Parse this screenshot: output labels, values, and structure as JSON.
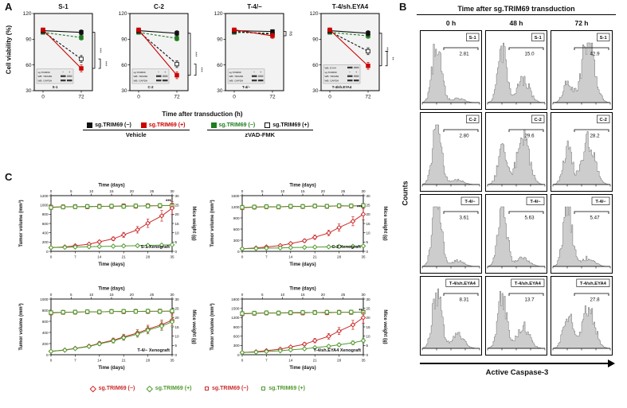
{
  "panelA": {
    "label": "A",
    "ylabel": "Cell viability (%)",
    "xlabel": "Time after transduction (h)",
    "legend": {
      "groups": [
        {
          "label": "Vehicle",
          "items": [
            {
              "label": "sg.TRIM69 (−)",
              "swatch": "#111111",
              "border": "#111111",
              "text": "#111111"
            },
            {
              "label": "sg.TRIM69 (+)",
              "swatch": "#cc0000",
              "border": "#cc0000",
              "text": "#cc0000"
            }
          ]
        },
        {
          "label": "zVAD-FMK",
          "items": [
            {
              "label": "sg.TRIM69 (−)",
              "swatch": "#1e7d1e",
              "border": "#1e7d1e",
              "text": "#1e7d1e"
            },
            {
              "label": "sg.TRIM69 (+)",
              "swatch": "#ffffff",
              "border": "#111111",
              "text": "#111111"
            }
          ]
        }
      ]
    }
  },
  "panelB": {
    "label": "B"
  },
  "panelC": {
    "label": "C",
    "top_xlabel": "Time (days)",
    "bottom_xlabel": "Time (days)",
    "left_ylabel": "Tumor volume (mm³)",
    "right_ylabel": "Mice weight (g)",
    "xticks_top": [
      0,
      5,
      10,
      15,
      20,
      25,
      30
    ],
    "xticks_bottom": [
      0,
      7,
      14,
      21,
      28,
      35
    ],
    "yticks_right": [
      0,
      5,
      10,
      15,
      20,
      25,
      30
    ],
    "volume_days": [
      0,
      4,
      7,
      11,
      14,
      18,
      21,
      25,
      28,
      32,
      35
    ],
    "weight_days": [
      0,
      3,
      6,
      9,
      12,
      15,
      18,
      21,
      24,
      27,
      30
    ],
    "legend": [
      {
        "label": "sg.TRIM69 (−)",
        "marker": "diamond",
        "color": "#cc2a2a"
      },
      {
        "label": "sg.TRIM69 (+)",
        "marker": "diamond",
        "color": "#4f9a2e"
      },
      {
        "label": "sg.TRIM69 (−)",
        "marker": "square",
        "color": "#cc2a2a"
      },
      {
        "label": "sg.TRIM69 (+)",
        "marker": "square",
        "color": "#4f9a2e"
      }
    ]
  },
  "chart_data": [
    {
      "panel": "A",
      "type": "line",
      "title": "S-1",
      "ylim": [
        30,
        120
      ],
      "yticks": [
        30,
        60,
        90,
        120
      ],
      "xticks": [
        0,
        72
      ],
      "series": [
        {
          "name": "sg.TRIM69 (−) Vehicle",
          "color": "#111111",
          "fill": "#111111",
          "dash": false,
          "values": [
            100,
            98
          ],
          "err": [
            2,
            3
          ]
        },
        {
          "name": "sg.TRIM69 (+) Vehicle",
          "color": "#cc0000",
          "fill": "#cc0000",
          "dash": false,
          "values": [
            101,
            56
          ],
          "err": [
            2,
            4
          ]
        },
        {
          "name": "sg.TRIM69 (−) zVAD-FMK",
          "color": "#1e7d1e",
          "fill": "#1e7d1e",
          "dash": true,
          "values": [
            98,
            92
          ],
          "err": [
            2,
            3
          ]
        },
        {
          "name": "sg.TRIM69 (+) zVAD-FMK",
          "color": "#111111",
          "fill": "#ffffff",
          "dash": true,
          "values": [
            99,
            67
          ],
          "err": [
            2,
            4
          ]
        }
      ],
      "sig": [
        {
          "span": [
            0,
            1
          ],
          "label": "***"
        },
        {
          "span": [
            3,
            1
          ],
          "label": "***"
        }
      ],
      "blot": {
        "rows": [
          "sg.TRIM69",
          "WB: TRIM69",
          "WB: GAPDH"
        ],
        "lanes": [
          "−",
          "+"
        ],
        "label": "S-1"
      }
    },
    {
      "panel": "A",
      "type": "line",
      "title": "C-2",
      "ylim": [
        30,
        120
      ],
      "yticks": [
        30,
        60,
        90,
        120
      ],
      "xticks": [
        0,
        72
      ],
      "series": [
        {
          "name": "sg.TRIM69 (−) Vehicle",
          "color": "#111111",
          "fill": "#111111",
          "dash": false,
          "values": [
            100,
            97
          ],
          "err": [
            2,
            3
          ]
        },
        {
          "name": "sg.TRIM69 (+) Vehicle",
          "color": "#cc0000",
          "fill": "#cc0000",
          "dash": false,
          "values": [
            101,
            48
          ],
          "err": [
            2,
            4
          ]
        },
        {
          "name": "sg.TRIM69 (−) zVAD-FMK",
          "color": "#1e7d1e",
          "fill": "#1e7d1e",
          "dash": true,
          "values": [
            98,
            91
          ],
          "err": [
            2,
            3
          ]
        },
        {
          "name": "sg.TRIM69 (+) zVAD-FMK",
          "color": "#111111",
          "fill": "#ffffff",
          "dash": true,
          "values": [
            99,
            61
          ],
          "err": [
            2,
            4
          ]
        }
      ],
      "sig": [
        {
          "span": [
            0,
            1
          ],
          "label": "***"
        },
        {
          "span": [
            3,
            1
          ],
          "label": "***"
        }
      ],
      "blot": {
        "rows": [
          "sg.TRIM69",
          "WB: TRIM69",
          "WB: GAPDH"
        ],
        "lanes": [
          "−",
          "+"
        ],
        "label": "C-2"
      }
    },
    {
      "panel": "A",
      "type": "line",
      "title": "T-4/−",
      "ylim": [
        30,
        120
      ],
      "yticks": [
        30,
        60,
        90,
        120
      ],
      "xticks": [
        0,
        72
      ],
      "series": [
        {
          "name": "sg.TRIM69 (−) Vehicle",
          "color": "#111111",
          "fill": "#111111",
          "dash": false,
          "values": [
            100,
            99
          ],
          "err": [
            2,
            2
          ]
        },
        {
          "name": "sg.TRIM69 (+) Vehicle",
          "color": "#cc0000",
          "fill": "#cc0000",
          "dash": false,
          "values": [
            101,
            94
          ],
          "err": [
            2,
            3
          ]
        },
        {
          "name": "sg.TRIM69 (−) zVAD-FMK",
          "color": "#1e7d1e",
          "fill": "#1e7d1e",
          "dash": true,
          "values": [
            98,
            97
          ],
          "err": [
            2,
            2
          ]
        },
        {
          "name": "sg.TRIM69 (+) zVAD-FMK",
          "color": "#111111",
          "fill": "#ffffff",
          "dash": true,
          "values": [
            99,
            96
          ],
          "err": [
            2,
            3
          ]
        }
      ],
      "sig": [
        {
          "span": [
            0,
            1
          ],
          "label": "ns"
        }
      ],
      "blot": {
        "rows": [
          "sg.TRIM69",
          "WB: TRIM69",
          "WB: GAPDH"
        ],
        "lanes": [
          "−",
          "+"
        ],
        "label": "T-4/−"
      }
    },
    {
      "panel": "A",
      "type": "line",
      "title": "T-4/sh.EYA4",
      "ylim": [
        30,
        120
      ],
      "yticks": [
        30,
        60,
        90,
        120
      ],
      "xticks": [
        0,
        72
      ],
      "series": [
        {
          "name": "sg.TRIM69 (−) Vehicle",
          "color": "#111111",
          "fill": "#111111",
          "dash": false,
          "values": [
            100,
            97
          ],
          "err": [
            2,
            3
          ]
        },
        {
          "name": "sg.TRIM69 (+) Vehicle",
          "color": "#cc0000",
          "fill": "#cc0000",
          "dash": false,
          "values": [
            101,
            59
          ],
          "err": [
            2,
            4
          ]
        },
        {
          "name": "sg.TRIM69 (−) zVAD-FMK",
          "color": "#1e7d1e",
          "fill": "#1e7d1e",
          "dash": true,
          "values": [
            98,
            94
          ],
          "err": [
            2,
            3
          ]
        },
        {
          "name": "sg.TRIM69 (+) zVAD-FMK",
          "color": "#111111",
          "fill": "#ffffff",
          "dash": true,
          "values": [
            99,
            76
          ],
          "err": [
            2,
            4
          ]
        }
      ],
      "sig": [
        {
          "span": [
            0,
            1
          ],
          "label": "***"
        },
        {
          "span": [
            3,
            1
          ],
          "label": "**"
        }
      ],
      "blot": {
        "rows": [
          "WB: EYA4",
          "sg.TRIM69",
          "WB: TRIM69",
          "WB: GAPDH"
        ],
        "lanes": [
          "−",
          "+"
        ],
        "label": "T-4/sh.EYA4"
      }
    },
    {
      "panel": "B",
      "type": "flow-histogram-grid",
      "title": "Time after sg.TRIM69 transduction",
      "columns": [
        "0 h",
        "48 h",
        "72 h"
      ],
      "ylabel": "Counts",
      "xlabel": "Active Caspase-3",
      "rows": [
        {
          "name": "S-1",
          "values": [
            "2.81",
            "15.0",
            "42.9"
          ]
        },
        {
          "name": "C-2",
          "values": [
            "2.80",
            "29.6",
            "28.2"
          ]
        },
        {
          "name": "T-4/−",
          "values": [
            "3.61",
            "5.63",
            "5.47"
          ]
        },
        {
          "name": "T-4/sh.EYA4",
          "values": [
            "8.31",
            "13.7",
            "27.8"
          ]
        }
      ]
    },
    {
      "panel": "C",
      "type": "line-dual-axis",
      "title": "S-1 Xenograft",
      "ylim_left": [
        0,
        1200
      ],
      "yticks_left": [
        0,
        200,
        400,
        600,
        800,
        1000,
        1200
      ],
      "ylim_right": [
        0,
        30
      ],
      "sig": "***",
      "series": [
        {
          "name": "sg.TRIM69 (−)",
          "role": "volume",
          "marker": "diamond",
          "color": "#cc2a2a",
          "values": [
            80,
            95,
            120,
            155,
            205,
            270,
            355,
            465,
            605,
            765,
            930
          ]
        },
        {
          "name": "sg.TRIM69 (+)",
          "role": "volume",
          "marker": "diamond",
          "color": "#4f9a2e",
          "values": [
            80,
            86,
            92,
            98,
            104,
            110,
            116,
            122,
            128,
            134,
            140
          ]
        },
        {
          "name": "sg.TRIM69 (−)",
          "role": "weight",
          "marker": "square",
          "color": "#cc2a2a",
          "values": [
            23.8,
            24.0,
            24.1,
            24.0,
            24.3,
            24.2,
            24.5,
            24.3,
            24.6,
            24.5,
            24.8
          ]
        },
        {
          "name": "sg.TRIM69 (+)",
          "role": "weight",
          "marker": "square",
          "color": "#4f9a2e",
          "values": [
            23.6,
            23.9,
            24.0,
            24.2,
            24.1,
            24.4,
            24.2,
            24.5,
            24.4,
            24.7,
            24.6
          ]
        }
      ]
    },
    {
      "panel": "C",
      "type": "line-dual-axis",
      "title": "C-2 Xenograft",
      "ylim_left": [
        0,
        1500
      ],
      "yticks_left": [
        0,
        300,
        600,
        900,
        1200,
        1500
      ],
      "ylim_right": [
        0,
        30
      ],
      "sig": "***",
      "series": [
        {
          "name": "sg.TRIM69 (−)",
          "role": "volume",
          "marker": "diamond",
          "color": "#cc2a2a",
          "values": [
            70,
            90,
            118,
            155,
            210,
            285,
            380,
            495,
            640,
            810,
            1000
          ]
        },
        {
          "name": "sg.TRIM69 (+)",
          "role": "volume",
          "marker": "diamond",
          "color": "#4f9a2e",
          "values": [
            70,
            77,
            85,
            92,
            100,
            107,
            114,
            121,
            129,
            136,
            144
          ]
        },
        {
          "name": "sg.TRIM69 (−)",
          "role": "weight",
          "marker": "square",
          "color": "#cc2a2a",
          "values": [
            23.5,
            23.8,
            24.0,
            23.9,
            24.2,
            24.1,
            24.4,
            24.2,
            24.5,
            24.4,
            24.6
          ]
        },
        {
          "name": "sg.TRIM69 (+)",
          "role": "weight",
          "marker": "square",
          "color": "#4f9a2e",
          "values": [
            23.7,
            23.9,
            24.1,
            24.0,
            24.3,
            24.2,
            24.4,
            24.3,
            24.6,
            24.5,
            24.7
          ]
        }
      ]
    },
    {
      "panel": "C",
      "type": "line-dual-axis",
      "title": "T-4/− Xenograft",
      "ylim_left": [
        0,
        1000
      ],
      "yticks_left": [
        0,
        200,
        400,
        600,
        800,
        1000
      ],
      "ylim_right": [
        0,
        30
      ],
      "series": [
        {
          "name": "sg.TRIM69 (−)",
          "role": "volume",
          "marker": "diamond",
          "color": "#cc2a2a",
          "values": [
            60,
            85,
            115,
            155,
            205,
            260,
            320,
            390,
            460,
            540,
            620
          ]
        },
        {
          "name": "sg.TRIM69 (+)",
          "role": "volume",
          "marker": "diamond",
          "color": "#4f9a2e",
          "values": [
            60,
            82,
            110,
            148,
            195,
            248,
            305,
            370,
            440,
            515,
            590
          ]
        },
        {
          "name": "sg.TRIM69 (−)",
          "role": "weight",
          "marker": "square",
          "color": "#cc2a2a",
          "values": [
            22.5,
            22.8,
            22.9,
            23.1,
            23.0,
            23.3,
            23.2,
            23.4,
            23.3,
            23.5,
            23.4
          ]
        },
        {
          "name": "sg.TRIM69 (+)",
          "role": "weight",
          "marker": "square",
          "color": "#4f9a2e",
          "values": [
            22.7,
            22.9,
            23.0,
            23.2,
            23.1,
            23.3,
            23.4,
            23.3,
            23.5,
            23.4,
            23.6
          ]
        }
      ]
    },
    {
      "panel": "C",
      "type": "line-dual-axis",
      "title": "T-4/sh.EYA4 Xenograft",
      "ylim_left": [
        0,
        1800
      ],
      "yticks_left": [
        0,
        300,
        600,
        900,
        1200,
        1500,
        1800
      ],
      "ylim_right": [
        0,
        30
      ],
      "sig": "**",
      "series": [
        {
          "name": "sg.TRIM69 (−)",
          "role": "volume",
          "marker": "diamond",
          "color": "#cc2a2a",
          "values": [
            70,
            95,
            130,
            180,
            250,
            340,
            455,
            595,
            765,
            965,
            1200
          ]
        },
        {
          "name": "sg.TRIM69 (+)",
          "role": "volume",
          "marker": "diamond",
          "color": "#4f9a2e",
          "values": [
            70,
            85,
            104,
            128,
            156,
            190,
            228,
            272,
            322,
            385,
            455
          ]
        },
        {
          "name": "sg.TRIM69 (−)",
          "role": "weight",
          "marker": "square",
          "color": "#cc2a2a",
          "values": [
            22.0,
            22.3,
            22.5,
            22.4,
            22.6,
            22.5,
            22.8,
            22.6,
            22.9,
            22.8,
            23.0
          ]
        },
        {
          "name": "sg.TRIM69 (+)",
          "role": "weight",
          "marker": "square",
          "color": "#4f9a2e",
          "values": [
            22.2,
            22.4,
            22.6,
            22.5,
            22.7,
            22.8,
            22.7,
            22.9,
            22.8,
            23.0,
            22.9
          ]
        }
      ]
    }
  ]
}
